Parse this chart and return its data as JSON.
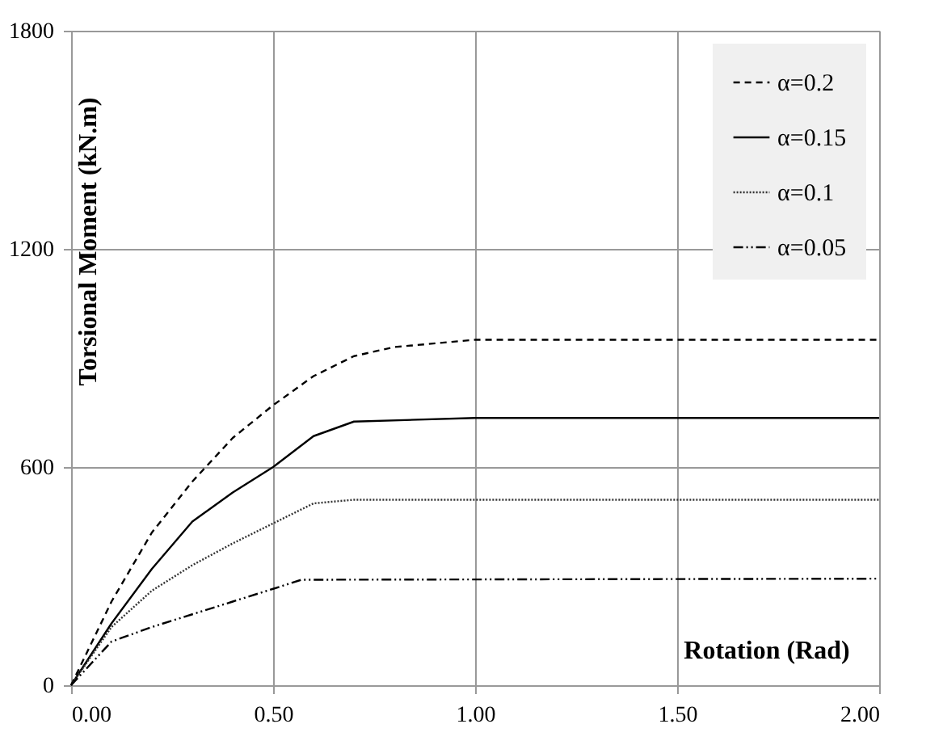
{
  "chart_data": {
    "type": "line",
    "xlabel": "Rotation (Rad)",
    "ylabel": "Torsional Moment (kN.m)",
    "xlim": [
      0,
      2
    ],
    "xticks": [
      {
        "value": 0,
        "label": "0.00"
      },
      {
        "value": 0.5,
        "label": "0.50"
      },
      {
        "value": 1,
        "label": "1.00"
      },
      {
        "value": 1.5,
        "label": "1.50"
      },
      {
        "value": 2,
        "label": "2.00"
      }
    ],
    "ylim": [
      0,
      1800
    ],
    "yticks": [
      0,
      600,
      1200,
      1800
    ],
    "grid": true,
    "legend": "top right",
    "marker": "none",
    "series": [
      {
        "name": "α=0.2",
        "color": "#000000",
        "line_style": "dashed",
        "x": [
          0,
          0.1,
          0.2,
          0.3,
          0.4,
          0.5,
          0.6,
          0.7,
          0.8,
          1.0,
          2.0
        ],
        "values": [
          0,
          230,
          420,
          560,
          680,
          770,
          850,
          905,
          930,
          950,
          950
        ]
      },
      {
        "name": "α=0.15",
        "color": "#000000",
        "line_style": "solid",
        "x": [
          0,
          0.1,
          0.2,
          0.3,
          0.4,
          0.5,
          0.6,
          0.7,
          1.0,
          2.0
        ],
        "values": [
          0,
          170,
          320,
          450,
          530,
          600,
          685,
          725,
          735,
          735
        ]
      },
      {
        "name": "α=0.1",
        "color": "#333333",
        "line_style": "dotted",
        "x": [
          0,
          0.1,
          0.2,
          0.3,
          0.4,
          0.5,
          0.6,
          0.7,
          2.0
        ],
        "values": [
          0,
          160,
          260,
          330,
          390,
          445,
          500,
          510,
          510
        ]
      },
      {
        "name": "α=0.05",
        "color": "#000000",
        "line_style": "dashdot",
        "x": [
          0,
          0.1,
          0.2,
          0.3,
          0.4,
          0.5,
          0.57,
          2.0
        ],
        "values": [
          0,
          120,
          160,
          195,
          230,
          265,
          290,
          293
        ]
      }
    ]
  }
}
